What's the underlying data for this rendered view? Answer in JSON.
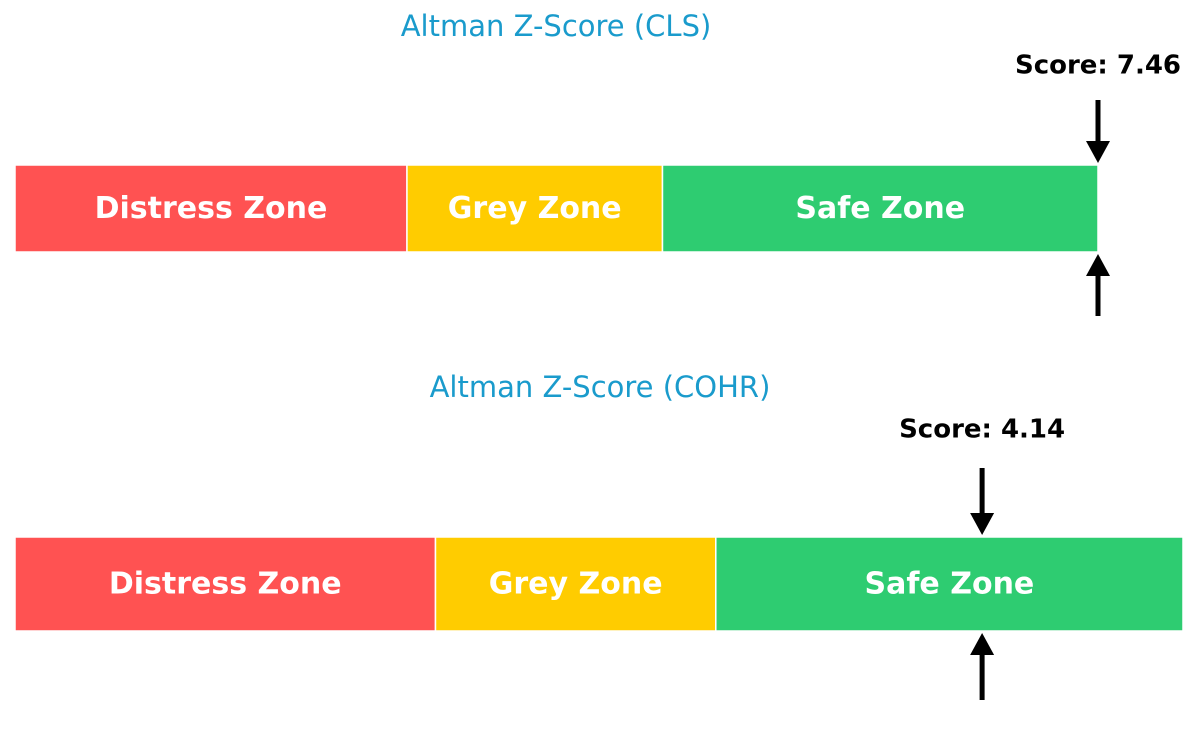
{
  "chart_data": [
    {
      "type": "gauge",
      "title": "Altman Z-Score (CLS)",
      "title_color": "#1a9bcc",
      "xlim": [
        0,
        7.46
      ],
      "zones": [
        {
          "name": "Distress Zone",
          "color": "#ff5252",
          "values": [
            0,
            2.7
          ]
        },
        {
          "name": "Grey Zone",
          "color": "#ffcc00",
          "values": [
            2.7,
            4.46
          ]
        },
        {
          "name": "Safe Zone",
          "color": "#2ecc71",
          "values": [
            4.46,
            7.46
          ]
        }
      ],
      "score": {
        "value": 7.46,
        "label": "Score: 7.46"
      }
    },
    {
      "type": "gauge",
      "title": "Altman Z-Score (COHR)",
      "title_color": "#1a9bcc",
      "xlim": [
        0,
        5
      ],
      "zones": [
        {
          "name": "Distress Zone",
          "color": "#ff5252",
          "values": [
            0,
            1.8
          ]
        },
        {
          "name": "Grey Zone",
          "color": "#ffcc00",
          "values": [
            1.8,
            3
          ]
        },
        {
          "name": "Safe Zone",
          "color": "#2ecc71",
          "values": [
            3,
            5
          ]
        }
      ],
      "score": {
        "value": 4.14,
        "label": "Score: 4.14"
      }
    }
  ]
}
